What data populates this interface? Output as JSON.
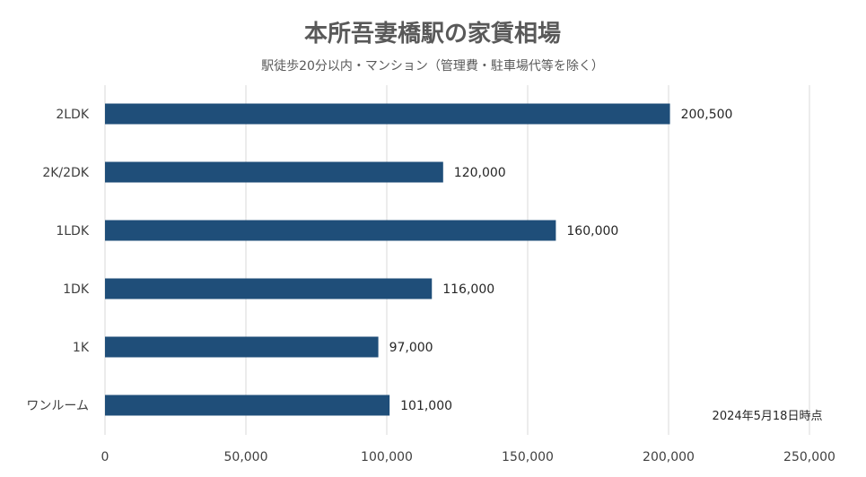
{
  "chart_data": {
    "type": "bar",
    "orientation": "horizontal",
    "title": "本所吾妻橋駅の家賃相場",
    "subtitle": "駅徒歩20分以内・マンション（管理費・駐車場代等を除く）",
    "categories": [
      "2LDK",
      "2K/2DK",
      "1LDK",
      "1DK",
      "1K",
      "ワンルーム"
    ],
    "values": [
      200500,
      120000,
      160000,
      116000,
      97000,
      101000
    ],
    "data_labels": [
      "200,500",
      "120,000",
      "160,000",
      "116,000",
      "97,000",
      "101,000"
    ],
    "xlim": [
      0,
      250000
    ],
    "x_ticks": [
      0,
      50000,
      100000,
      150000,
      200000,
      250000
    ],
    "x_tick_labels": [
      "0",
      "50,000",
      "100,000",
      "150,000",
      "200,000",
      "250,000"
    ],
    "grid": true,
    "bar_color": "#1f4e79",
    "note": "2024年5月18日時点"
  }
}
